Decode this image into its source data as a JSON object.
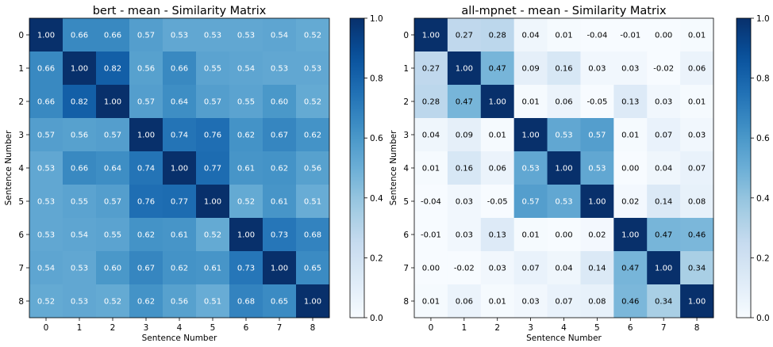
{
  "chart_data": [
    {
      "type": "heatmap",
      "title": "bert - mean - Similarity Matrix",
      "xlabel": "Sentence Number",
      "ylabel": "Sentence Number",
      "x_ticks": [
        "0",
        "1",
        "2",
        "3",
        "4",
        "5",
        "6",
        "7",
        "8"
      ],
      "y_ticks": [
        "0",
        "1",
        "2",
        "3",
        "4",
        "5",
        "6",
        "7",
        "8"
      ],
      "colormap": "Blues",
      "vmin": 0.0,
      "vmax": 1.0,
      "colorbar_ticks": [
        "0.0",
        "0.2",
        "0.4",
        "0.6",
        "0.8",
        "1.0"
      ],
      "values": [
        [
          1.0,
          0.66,
          0.66,
          0.57,
          0.53,
          0.53,
          0.53,
          0.54,
          0.52
        ],
        [
          0.66,
          1.0,
          0.82,
          0.56,
          0.66,
          0.55,
          0.54,
          0.53,
          0.53
        ],
        [
          0.66,
          0.82,
          1.0,
          0.57,
          0.64,
          0.57,
          0.55,
          0.6,
          0.52
        ],
        [
          0.57,
          0.56,
          0.57,
          1.0,
          0.74,
          0.76,
          0.62,
          0.67,
          0.62
        ],
        [
          0.53,
          0.66,
          0.64,
          0.74,
          1.0,
          0.77,
          0.61,
          0.62,
          0.56
        ],
        [
          0.53,
          0.55,
          0.57,
          0.76,
          0.77,
          1.0,
          0.52,
          0.61,
          0.51
        ],
        [
          0.53,
          0.54,
          0.55,
          0.62,
          0.61,
          0.52,
          1.0,
          0.73,
          0.68
        ],
        [
          0.54,
          0.53,
          0.6,
          0.67,
          0.62,
          0.61,
          0.73,
          1.0,
          0.65
        ],
        [
          0.52,
          0.53,
          0.52,
          0.62,
          0.56,
          0.51,
          0.68,
          0.65,
          1.0
        ]
      ]
    },
    {
      "type": "heatmap",
      "title": "all-mpnet - mean - Similarity Matrix",
      "xlabel": "Sentence Number",
      "ylabel": "Sentence Number",
      "x_ticks": [
        "0",
        "1",
        "2",
        "3",
        "4",
        "5",
        "6",
        "7",
        "8"
      ],
      "y_ticks": [
        "0",
        "1",
        "2",
        "3",
        "4",
        "5",
        "6",
        "7",
        "8"
      ],
      "colormap": "Blues",
      "vmin": 0.0,
      "vmax": 1.0,
      "colorbar_ticks": [
        "0.0",
        "0.2",
        "0.4",
        "0.6",
        "0.8",
        "1.0"
      ],
      "values": [
        [
          1.0,
          0.27,
          0.28,
          0.04,
          0.01,
          -0.04,
          -0.01,
          0.0,
          0.01
        ],
        [
          0.27,
          1.0,
          0.47,
          0.09,
          0.16,
          0.03,
          0.03,
          -0.02,
          0.06
        ],
        [
          0.28,
          0.47,
          1.0,
          0.01,
          0.06,
          -0.05,
          0.13,
          0.03,
          0.01
        ],
        [
          0.04,
          0.09,
          0.01,
          1.0,
          0.53,
          0.57,
          0.01,
          0.07,
          0.03
        ],
        [
          0.01,
          0.16,
          0.06,
          0.53,
          1.0,
          0.53,
          0.0,
          0.04,
          0.07
        ],
        [
          -0.04,
          0.03,
          -0.05,
          0.57,
          0.53,
          1.0,
          0.02,
          0.14,
          0.08
        ],
        [
          -0.01,
          0.03,
          0.13,
          0.01,
          0.0,
          0.02,
          1.0,
          0.47,
          0.46
        ],
        [
          0.0,
          -0.02,
          0.03,
          0.07,
          0.04,
          0.14,
          0.47,
          1.0,
          0.34
        ],
        [
          0.01,
          0.06,
          0.01,
          0.03,
          0.07,
          0.08,
          0.46,
          0.34,
          1.0
        ]
      ]
    }
  ]
}
